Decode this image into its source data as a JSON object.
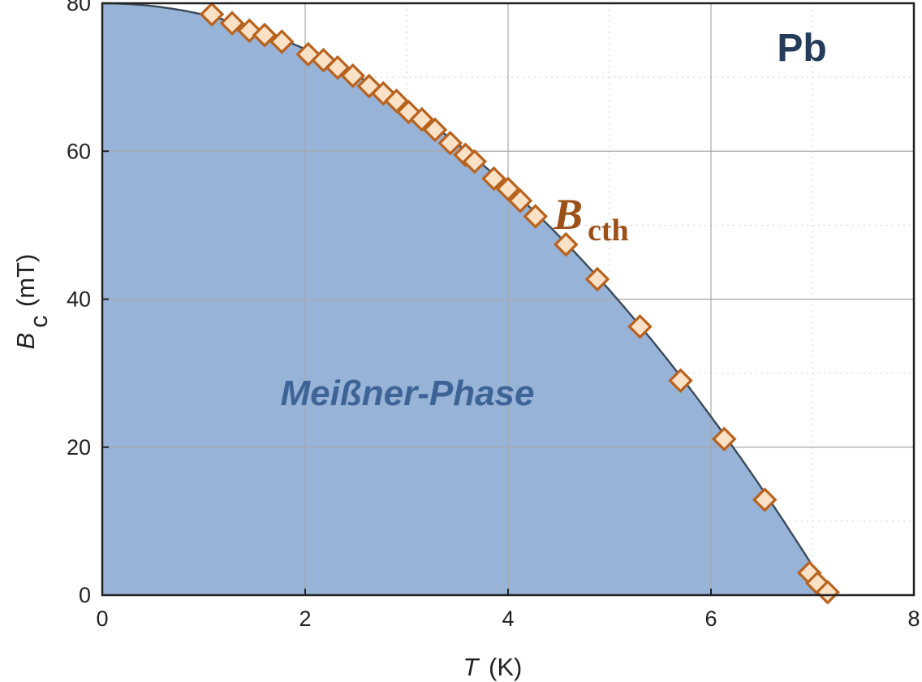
{
  "chart_data": {
    "type": "scatter",
    "element_label": "Pb",
    "region_label": "Meißner-Phase",
    "series_label": {
      "main": "B",
      "sub": "cth"
    },
    "xlabel": {
      "symbol": "T",
      "unit": "(K)"
    },
    "ylabel": {
      "symbol": "B",
      "subscript": "c",
      "unit": "(mT)"
    },
    "xlim": [
      0,
      8
    ],
    "ylim": [
      0,
      80
    ],
    "x_ticks": [
      0,
      2,
      4,
      6,
      8
    ],
    "y_ticks": [
      0,
      20,
      40,
      60,
      80
    ],
    "grid": true,
    "fit_curve": {
      "model": "parabolic",
      "B0": 80,
      "Tc": 7.18
    },
    "series": [
      {
        "x": [
          1.08,
          1.28,
          1.45,
          1.6,
          1.77,
          2.03,
          2.18,
          2.32,
          2.47,
          2.63,
          2.77,
          2.9,
          3.02,
          3.15,
          3.28,
          3.43,
          3.58,
          3.67,
          3.86,
          4.0,
          4.12,
          4.27,
          4.57,
          4.88,
          5.3,
          5.7,
          6.13,
          6.53,
          6.97,
          7.05,
          7.15
        ],
        "y": [
          78.5,
          77.3,
          76.3,
          75.7,
          74.8,
          73.1,
          72.3,
          71.3,
          70.2,
          68.8,
          67.8,
          66.8,
          65.3,
          64.3,
          62.9,
          61.1,
          59.5,
          58.6,
          56.3,
          54.9,
          53.3,
          51.2,
          47.4,
          42.7,
          36.3,
          29.0,
          21.1,
          12.9,
          3.0,
          1.6,
          0.4
        ]
      }
    ],
    "colors": {
      "fill": "#97b3d7",
      "curve": "#3a4a5a",
      "marker_fill": "#fbe1c6",
      "marker_stroke": "#b8621e",
      "grid_major": "#a9a9a9",
      "grid_minor": "#cfcfcf",
      "axis": "#222222"
    }
  }
}
